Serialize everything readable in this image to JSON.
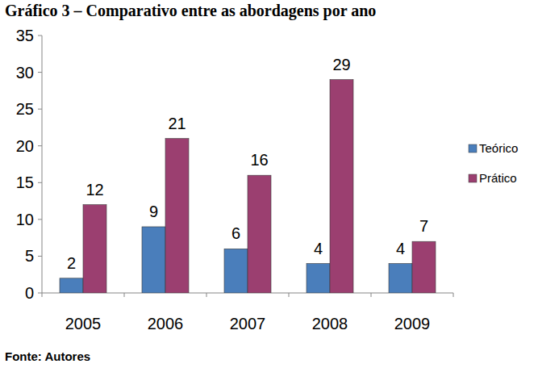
{
  "chart_data": {
    "type": "bar",
    "title": "Gráfico 3 – Comparativo entre as abordagens por ano",
    "source": "Fonte: Autores",
    "categories": [
      "2005",
      "2006",
      "2007",
      "2008",
      "2009"
    ],
    "series": [
      {
        "name": "Teórico",
        "color": "#4a7ebb",
        "values": [
          2,
          9,
          6,
          4,
          4
        ]
      },
      {
        "name": "Prático",
        "color": "#9b3f70",
        "values": [
          12,
          21,
          16,
          29,
          7
        ]
      }
    ],
    "ylim": [
      0,
      35
    ],
    "yticks": [
      0,
      5,
      10,
      15,
      20,
      25,
      30,
      35
    ],
    "grid": false,
    "legend": "right",
    "data_labels": true
  }
}
